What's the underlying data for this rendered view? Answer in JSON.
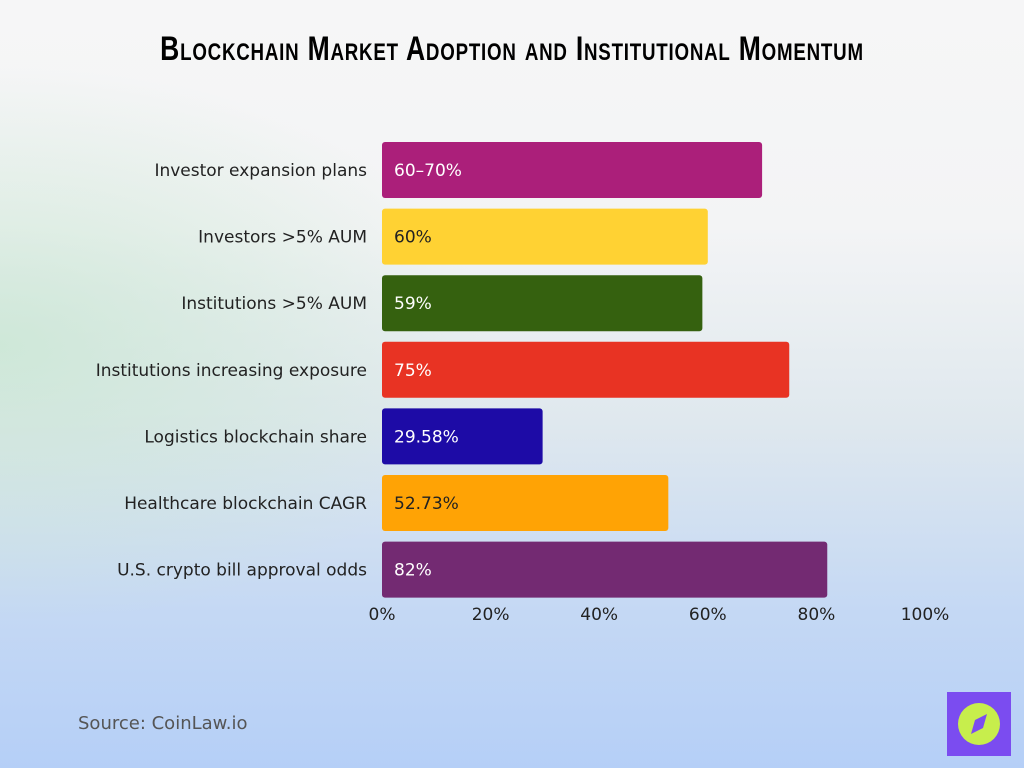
{
  "chart_data": {
    "type": "bar",
    "orientation": "horizontal",
    "title": "Blockchain Market Adoption and Institutional Momentum",
    "categories": [
      "Investor expansion plans",
      "Investors >5% AUM",
      "Institutions >5% AUM",
      "Institutions increasing exposure",
      "Logistics blockchain share",
      "Healthcare blockchain CAGR",
      "U.S. crypto bill approval odds"
    ],
    "values": [
      70,
      60,
      59,
      75,
      29.58,
      52.73,
      82
    ],
    "labels": [
      "60–70%",
      "60%",
      "59%",
      "75%",
      "29.58%",
      "52.73%",
      "82%"
    ],
    "colors": [
      "#ab1f7a",
      "#ffd233",
      "#35610f",
      "#e83323",
      "#1d0ba6",
      "#ffa305",
      "#732a72"
    ],
    "label_colors": [
      "#ffffff",
      "#222222",
      "#ffffff",
      "#ffffff",
      "#ffffff",
      "#222222",
      "#ffffff"
    ],
    "xlim": [
      0,
      100
    ],
    "xticks": [
      "0%",
      "20%",
      "40%",
      "60%",
      "80%",
      "100%"
    ],
    "xlabel": "",
    "ylabel": "",
    "grid": false,
    "legend": "none"
  },
  "source": "Source: CoinLaw.io",
  "logo_icon": "compass-icon"
}
